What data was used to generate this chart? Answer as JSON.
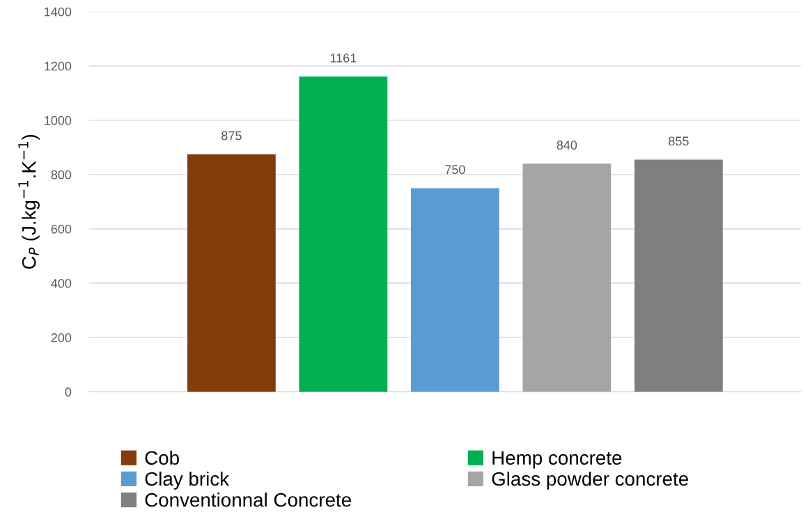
{
  "chart_data": {
    "type": "bar",
    "ylabel": "C$_{P}$ (J.kg$^{−1}$.K$^{−1}$)",
    "categories": [
      null
    ],
    "series": [
      {
        "name": "Cob",
        "color": "#843c0c",
        "values": [
          875
        ]
      },
      {
        "name": "Hemp concrete",
        "color": "#00b050",
        "values": [
          1161
        ]
      },
      {
        "name": "Clay brick",
        "color": "#5b9bd5",
        "values": [
          750
        ]
      },
      {
        "name": "Glass powder concrete",
        "color": "#a5a5a5",
        "values": [
          840
        ]
      },
      {
        "name": "Conventionnal Concrete",
        "color": "#7f7f7f",
        "values": [
          855
        ]
      }
    ],
    "ylim": [
      0,
      1400
    ],
    "yticks": [
      0,
      200,
      400,
      600,
      800,
      1000,
      1200,
      1400
    ],
    "grid": "y",
    "data_labels": true,
    "legend": "bottom"
  }
}
